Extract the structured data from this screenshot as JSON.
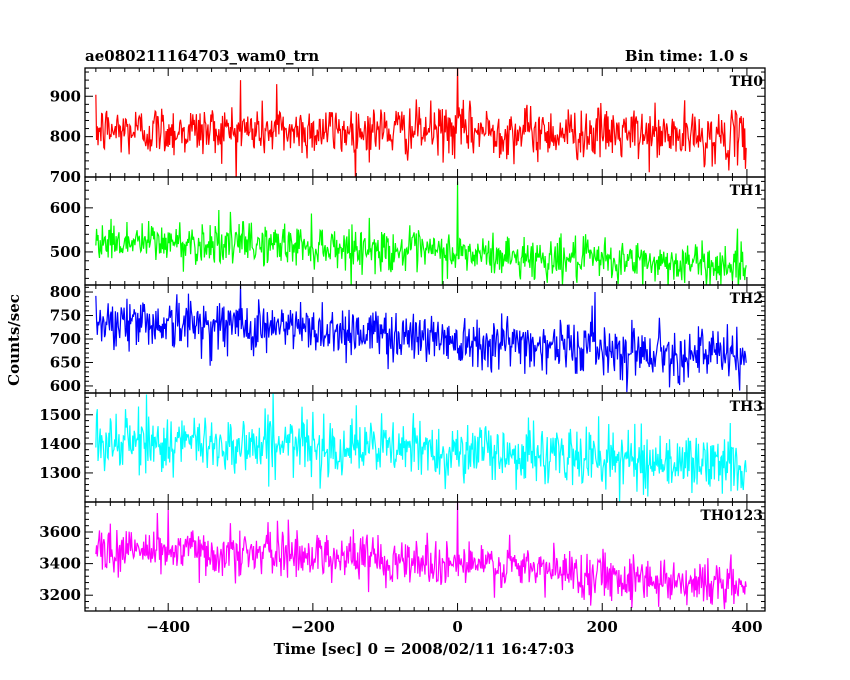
{
  "header": {
    "left_title": "ae080211164703_wam0_trn",
    "right_title": "Bin time: 1.0 s"
  },
  "chart_data": {
    "type": "line",
    "xlabel": "Time [sec] 0 = 2008/02/11 16:47:03",
    "ylabel": "Counts/sec",
    "xlim": [
      -515,
      425
    ],
    "xticks": [
      -400,
      -200,
      0,
      200,
      400
    ],
    "xtick_labels": [
      "−400",
      "−200",
      "0",
      "200",
      "400"
    ],
    "x_sample_range": [
      -500,
      399
    ],
    "bin_time_s": 1.0,
    "grid": false,
    "panels": [
      {
        "label": "TH0",
        "color": "#ff0000",
        "ylim": [
          700,
          970
        ],
        "yticks": [
          700,
          800,
          900
        ],
        "ytick_labels": [
          "700",
          "800",
          "900"
        ],
        "trend": [
          [
            -500,
            815
          ],
          [
            -200,
            815
          ],
          [
            0,
            815
          ],
          [
            200,
            808
          ],
          [
            399,
            795
          ]
        ],
        "noise_sd": 32,
        "spikes": [
          [
            0,
            975
          ],
          [
            -300,
            940
          ],
          [
            -250,
            930
          ]
        ]
      },
      {
        "label": "TH1",
        "color": "#00ff00",
        "ylim": [
          425,
          670
        ],
        "yticks": [
          500,
          600
        ],
        "ytick_labels": [
          "500",
          "600"
        ],
        "trend": [
          [
            -500,
            525
          ],
          [
            -200,
            515
          ],
          [
            0,
            495
          ],
          [
            200,
            480
          ],
          [
            399,
            470
          ]
        ],
        "noise_sd": 24,
        "spikes": [
          [
            0,
            660
          ],
          [
            -330,
            595
          ]
        ]
      },
      {
        "label": "TH2",
        "color": "#0000ff",
        "ylim": [
          585,
          815
        ],
        "yticks": [
          600,
          650,
          700,
          750,
          800
        ],
        "ytick_labels": [
          "600",
          "650",
          "700",
          "750",
          "800"
        ],
        "trend": [
          [
            -500,
            740
          ],
          [
            -200,
            722
          ],
          [
            0,
            700
          ],
          [
            200,
            680
          ],
          [
            399,
            662
          ]
        ],
        "noise_sd": 28,
        "spikes": [
          [
            190,
            800
          ],
          [
            -300,
            815
          ],
          [
            390,
            590
          ]
        ]
      },
      {
        "label": "TH3",
        "color": "#00ffff",
        "ylim": [
          1200,
          1575
        ],
        "yticks": [
          1300,
          1400,
          1500
        ],
        "ytick_labels": [
          "1300",
          "1400",
          "1500"
        ],
        "trend": [
          [
            -500,
            1405
          ],
          [
            -200,
            1395
          ],
          [
            0,
            1375
          ],
          [
            200,
            1350
          ],
          [
            399,
            1325
          ]
        ],
        "noise_sd": 50,
        "spikes": [
          [
            -430,
            1570
          ],
          [
            -255,
            1575
          ],
          [
            195,
            1495
          ]
        ]
      },
      {
        "label": "TH0123",
        "color": "#ff00ff",
        "ylim": [
          3100,
          3790
        ],
        "yticks": [
          3200,
          3400,
          3600
        ],
        "ytick_labels": [
          "3200",
          "3400",
          "3600"
        ],
        "trend": [
          [
            -500,
            3490
          ],
          [
            -200,
            3460
          ],
          [
            0,
            3400
          ],
          [
            200,
            3330
          ],
          [
            399,
            3255
          ]
        ],
        "noise_sd": 75,
        "spikes": [
          [
            0,
            3795
          ],
          [
            -400,
            3740
          ],
          [
            -415,
            3720
          ]
        ]
      }
    ]
  }
}
